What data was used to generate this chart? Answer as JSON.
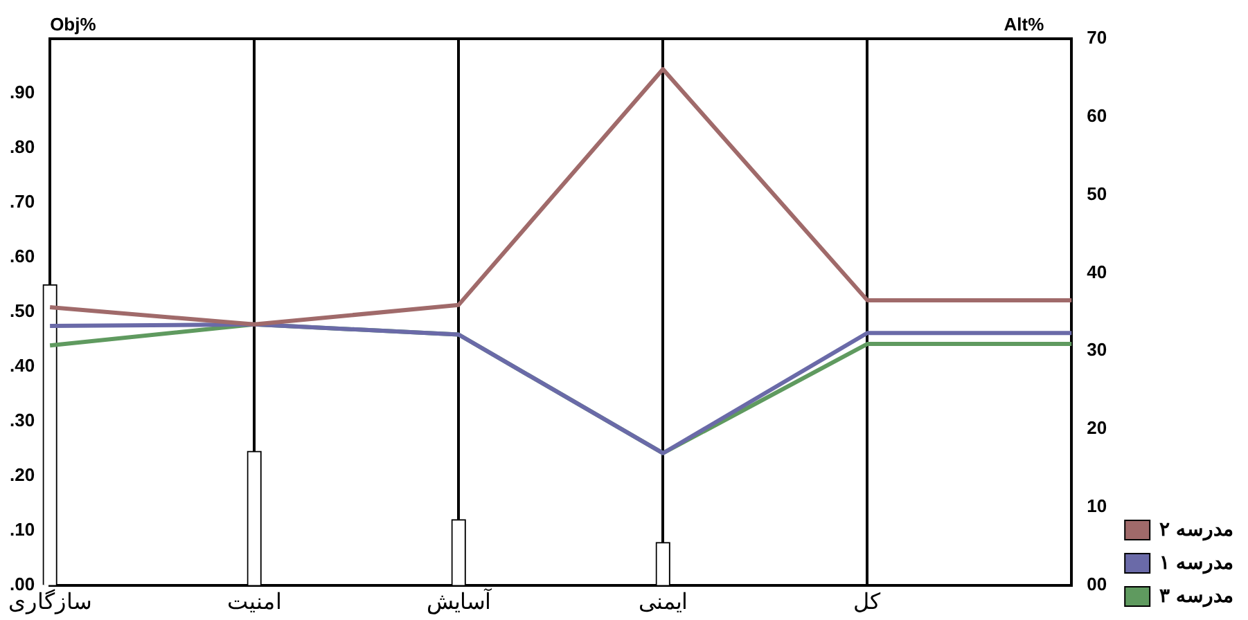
{
  "chart_data": {
    "type": "line",
    "ylabel": "Obj%",
    "y2label": "Alt%",
    "categories": [
      "سازگاری",
      "امنیت",
      "آسایش",
      "ایمنی",
      "کل",
      null
    ],
    "ylim": [
      0,
      1
    ],
    "yticks": [
      {
        "value": 0,
        "label": ".00"
      },
      {
        "value": 0.1,
        "label": ".10"
      },
      {
        "value": 0.2,
        "label": ".20"
      },
      {
        "value": 0.3,
        "label": ".30"
      },
      {
        "value": 0.4,
        "label": ".40"
      },
      {
        "value": 0.5,
        "label": ".50"
      },
      {
        "value": 0.6,
        "label": ".60"
      },
      {
        "value": 0.7,
        "label": ".70"
      },
      {
        "value": 0.8,
        "label": ".80"
      },
      {
        "value": 0.9,
        "label": ".90"
      }
    ],
    "y2lim": [
      0,
      70
    ],
    "y2ticks": [
      {
        "value": 0,
        "label": "00"
      },
      10,
      20,
      30,
      40,
      50,
      60,
      70
    ],
    "grid": "x",
    "legend": "right",
    "marker": "none",
    "series": [
      {
        "type": "bar",
        "color": "#ffffff",
        "values": [
          0.55,
          0.245,
          0.12,
          0.078,
          null,
          null
        ]
      },
      {
        "name": "مدرسه ۲",
        "color": "#a06a6a",
        "axis": "y2",
        "values": [
          35.6,
          33.4,
          35.9,
          66.1,
          36.5,
          36.5
        ]
      },
      {
        "name": "مدرسه ۱",
        "color": "#6a6aa8",
        "axis": "y2",
        "values": [
          33.2,
          33.4,
          32.1,
          16.9,
          32.3,
          32.3
        ]
      },
      {
        "name": "مدرسه ۳",
        "color": "#5f9a5f",
        "axis": "y2",
        "values": [
          30.7,
          33.4,
          32.1,
          16.9,
          30.9,
          30.9
        ]
      }
    ]
  }
}
